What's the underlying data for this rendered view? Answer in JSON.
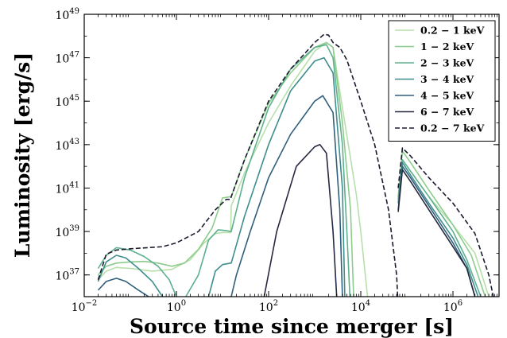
{
  "chart_data": {
    "type": "line",
    "title": "",
    "xlabel": "Source time since merger [s]",
    "ylabel": "Luminosity [erg/s]",
    "x_scale": "log",
    "y_scale": "log",
    "xlim": [
      0.01,
      10000000
    ],
    "ylim": [
      1e+36,
      1e+49
    ],
    "x_ticks": [
      {
        "value": 0.01,
        "base": "10",
        "exp": "−2"
      },
      {
        "value": 1,
        "base": "10",
        "exp": "0"
      },
      {
        "value": 100,
        "base": "10",
        "exp": "2"
      },
      {
        "value": 10000,
        "base": "10",
        "exp": "4"
      },
      {
        "value": 1000000,
        "base": "10",
        "exp": "6"
      }
    ],
    "y_ticks": [
      {
        "value": 1e+37,
        "base": "10",
        "exp": "37"
      },
      {
        "value": 1e+39,
        "base": "10",
        "exp": "39"
      },
      {
        "value": 1e+41,
        "base": "10",
        "exp": "41"
      },
      {
        "value": 1e+43,
        "base": "10",
        "exp": "43"
      },
      {
        "value": 1e+45,
        "base": "10",
        "exp": "45"
      },
      {
        "value": 1e+47,
        "base": "10",
        "exp": "47"
      },
      {
        "value": 1e+49,
        "base": "10",
        "exp": "49"
      }
    ],
    "grid": false,
    "legend_position": "top-right",
    "series": [
      {
        "name": "0.2 − 1 keV",
        "color": "#b7dfab",
        "dash": "none",
        "points": [
          [
            0.02,
            6e+36
          ],
          [
            0.03,
            1.5e+37
          ],
          [
            0.05,
            2.2e+37
          ],
          [
            0.1,
            2e+37
          ],
          [
            0.3,
            1.5e+37
          ],
          [
            0.8,
            1.8e+37
          ],
          [
            2,
            5e+37
          ],
          [
            4,
            3e+38
          ],
          [
            7,
            8e+38
          ],
          [
            10,
            9e+38
          ],
          [
            15,
            9e+38
          ],
          [
            15.5,
            1.5e+40
          ],
          [
            30,
            5e+41
          ],
          [
            100,
            1e+44
          ],
          [
            300,
            5e+45
          ],
          [
            1000,
            2e+47
          ],
          [
            1800,
            5e+47
          ],
          [
            2500,
            3e+47
          ],
          [
            4000,
            5e+44
          ],
          [
            8000,
            5e+40
          ],
          [
            10000,
            1e+39
          ],
          [
            14000,
            1e+36
          ]
        ]
      },
      {
        "name": "0.2 − 1 keV",
        "color": "#b7dfab",
        "dash": "none",
        "points": [
          [
            65000,
            2e+40
          ],
          [
            80000,
            2e+42
          ],
          [
            120000,
            6e+41
          ],
          [
            300000,
            4e+40
          ],
          [
            1000000,
            2e+39
          ],
          [
            3000000,
            1e+38
          ],
          [
            6000000,
            1e+36
          ]
        ]
      },
      {
        "name": "1 − 2 keV",
        "color": "#8dcc8c",
        "dash": "none",
        "points": [
          [
            0.02,
            1e+37
          ],
          [
            0.03,
            2.5e+37
          ],
          [
            0.05,
            3.5e+37
          ],
          [
            0.1,
            4e+37
          ],
          [
            0.2,
            4.2e+37
          ],
          [
            0.4,
            3.5e+37
          ],
          [
            0.8,
            2.5e+37
          ],
          [
            1.5,
            3.5e+37
          ],
          [
            3,
            1.5e+38
          ],
          [
            6,
            1.5e+39
          ],
          [
            10,
            3.5e+40
          ],
          [
            15,
            4e+40
          ],
          [
            15.5,
            4e+40
          ],
          [
            30,
            2e+42
          ],
          [
            100,
            8e+44
          ],
          [
            300,
            2e+46
          ],
          [
            1000,
            3e+47
          ],
          [
            1800,
            5e+47
          ],
          [
            2500,
            3e+47
          ],
          [
            4000,
            1e+44
          ],
          [
            6000,
            1e+40
          ],
          [
            7000,
            1e+36
          ]
        ]
      },
      {
        "name": "1 − 2 keV",
        "color": "#8dcc8c",
        "dash": "none",
        "points": [
          [
            65000,
            4e+40
          ],
          [
            80000,
            5e+42
          ],
          [
            120000,
            1.5e+42
          ],
          [
            300000,
            8e+40
          ],
          [
            1000000,
            2e+39
          ],
          [
            2500000,
            8e+37
          ],
          [
            5000000,
            1e+36
          ]
        ]
      },
      {
        "name": "2 − 3 keV",
        "color": "#5db08f",
        "dash": "none",
        "points": [
          [
            0.02,
            2e+37
          ],
          [
            0.03,
            8e+37
          ],
          [
            0.05,
            1.8e+38
          ],
          [
            0.1,
            1.4e+38
          ],
          [
            0.2,
            7e+37
          ],
          [
            0.4,
            2.5e+37
          ],
          [
            0.7,
            6e+36
          ],
          [
            1,
            1e+36
          ]
        ]
      },
      {
        "name": "2 − 3 keV",
        "color": "#5db08f",
        "dash": "none",
        "points": [
          [
            1.6,
            1e+36
          ],
          [
            3,
            1e+37
          ],
          [
            5,
            4e+38
          ],
          [
            8,
            1.2e+39
          ],
          [
            12,
            1.1e+39
          ],
          [
            15,
            1e+39
          ],
          [
            15.5,
            1e+39
          ],
          [
            30,
            3e+41
          ],
          [
            100,
            5e+44
          ],
          [
            300,
            3e+46
          ],
          [
            1000,
            3e+47
          ],
          [
            1800,
            4e+47
          ],
          [
            2500,
            1e+47
          ],
          [
            4000,
            1e+43
          ],
          [
            5000,
            1e+39
          ],
          [
            5800,
            1e+36
          ]
        ]
      },
      {
        "name": "2 − 3 keV",
        "color": "#5db08f",
        "dash": "none",
        "points": [
          [
            65000,
            3e+40
          ],
          [
            80000,
            2e+42
          ],
          [
            120000,
            6e+41
          ],
          [
            300000,
            4e+40
          ],
          [
            1000000,
            1e+39
          ],
          [
            2000000,
            5e+37
          ],
          [
            4000000,
            1e+36
          ]
        ]
      },
      {
        "name": "3 − 4 keV",
        "color": "#3f8d8c",
        "dash": "none",
        "points": [
          [
            0.02,
            5e+36
          ],
          [
            0.03,
            4e+37
          ],
          [
            0.05,
            8e+37
          ],
          [
            0.08,
            6e+37
          ],
          [
            0.15,
            2e+37
          ],
          [
            0.3,
            5e+36
          ],
          [
            0.5,
            1e+36
          ]
        ]
      },
      {
        "name": "3 − 4 keV",
        "color": "#3f8d8c",
        "dash": "none",
        "points": [
          [
            5,
            1e+36
          ],
          [
            7,
            1.5e+37
          ],
          [
            10,
            3e+37
          ],
          [
            15,
            3.5e+37
          ],
          [
            15.5,
            3.5e+37
          ],
          [
            30,
            5e+39
          ],
          [
            100,
            1e+43
          ],
          [
            300,
            3e+45
          ],
          [
            1000,
            7e+46
          ],
          [
            1600,
            1e+47
          ],
          [
            2500,
            2e+46
          ],
          [
            4000,
            1e+41
          ],
          [
            4500,
            1e+36
          ]
        ]
      },
      {
        "name": "3 − 4 keV",
        "color": "#3f8d8c",
        "dash": "none",
        "points": [
          [
            65000,
            2e+40
          ],
          [
            80000,
            1.5e+42
          ],
          [
            120000,
            4e+41
          ],
          [
            300000,
            2e+40
          ],
          [
            1000000,
            5e+38
          ],
          [
            2000000,
            3e+37
          ],
          [
            3500000,
            1e+36
          ]
        ]
      },
      {
        "name": "4 − 5 keV",
        "color": "#2f5f7c",
        "dash": "none",
        "points": [
          [
            0.02,
            2e+36
          ],
          [
            0.03,
            5e+36
          ],
          [
            0.05,
            7e+36
          ],
          [
            0.08,
            5e+36
          ],
          [
            0.15,
            2e+36
          ],
          [
            0.25,
            1e+36
          ]
        ]
      },
      {
        "name": "4 − 5 keV",
        "color": "#2f5f7c",
        "dash": "none",
        "points": [
          [
            15.5,
            1e+36
          ],
          [
            20,
            1e+37
          ],
          [
            40,
            1e+39
          ],
          [
            100,
            3e+41
          ],
          [
            300,
            3e+43
          ],
          [
            1000,
            1e+45
          ],
          [
            1500,
            1.8e+45
          ],
          [
            2500,
            3e+44
          ],
          [
            3500,
            1e+40
          ],
          [
            4000,
            1e+36
          ]
        ]
      },
      {
        "name": "4 − 5 keV",
        "color": "#2f5f7c",
        "dash": "none",
        "points": [
          [
            65000,
            1e+40
          ],
          [
            80000,
            1e+42
          ],
          [
            120000,
            3e+41
          ],
          [
            300000,
            1.5e+40
          ],
          [
            1000000,
            3e+38
          ],
          [
            2000000,
            2e+37
          ],
          [
            3000000,
            1e+36
          ]
        ]
      },
      {
        "name": "6 − 7 keV",
        "color": "#262840",
        "dash": "none",
        "points": [
          [
            80,
            1e+36
          ],
          [
            150,
            1e+39
          ],
          [
            400,
            1e+42
          ],
          [
            1000,
            8e+42
          ],
          [
            1300,
            1e+43
          ],
          [
            1800,
            4e+42
          ],
          [
            2500,
            1e+39
          ],
          [
            3000,
            1e+36
          ]
        ]
      },
      {
        "name": "6 − 7 keV",
        "color": "#262840",
        "dash": "none",
        "points": [
          [
            65000,
            8e+39
          ],
          [
            80000,
            7e+41
          ],
          [
            120000,
            2e+41
          ],
          [
            300000,
            1e+40
          ],
          [
            1000000,
            2e+38
          ],
          [
            2000000,
            2e+37
          ],
          [
            3000000,
            1e+36
          ]
        ]
      },
      {
        "name": "0.2 − 7 keV",
        "color": "#1a1a2e",
        "dash": "6 3",
        "points": [
          [
            0.02,
            6e+36
          ],
          [
            0.03,
            9e+37
          ],
          [
            0.05,
            1.4e+38
          ],
          [
            0.1,
            1.6e+38
          ],
          [
            0.5,
            2e+38
          ],
          [
            1,
            3e+38
          ],
          [
            3,
            1e+39
          ],
          [
            7,
            1e+40
          ],
          [
            12,
            3e+40
          ],
          [
            15,
            3e+40
          ],
          [
            15.5,
            4e+40
          ],
          [
            30,
            2e+42
          ],
          [
            100,
            1e+45
          ],
          [
            300,
            3e+46
          ],
          [
            1000,
            5e+47
          ],
          [
            1600,
            1.2e+48
          ],
          [
            2000,
            1.1e+48
          ],
          [
            2500,
            5e+47
          ],
          [
            3500,
            3e+47
          ],
          [
            5000,
            8e+46
          ],
          [
            10000,
            1e+45
          ],
          [
            20000,
            1e+43
          ],
          [
            40000,
            1e+40
          ],
          [
            60000,
            1e+37
          ],
          [
            63000,
            1e+36
          ]
        ]
      },
      {
        "name": "0.2 − 7 keV",
        "color": "#1a1a2e",
        "dash": "6 3",
        "points": [
          [
            65000,
            1e+41
          ],
          [
            80000,
            7e+42
          ],
          [
            120000,
            3e+42
          ],
          [
            300000,
            3e+41
          ],
          [
            1000000,
            2e+40
          ],
          [
            3000000,
            8e+38
          ],
          [
            6000000,
            1e+37
          ],
          [
            7500000,
            1e+36
          ]
        ]
      }
    ],
    "legend": [
      {
        "label": "0.2 − 1 keV",
        "color": "#b7dfab",
        "dash": "none"
      },
      {
        "label": "1 − 2 keV",
        "color": "#8dcc8c",
        "dash": "none"
      },
      {
        "label": "2 − 3 keV",
        "color": "#5db08f",
        "dash": "none"
      },
      {
        "label": "3 − 4 keV",
        "color": "#3f8d8c",
        "dash": "none"
      },
      {
        "label": "4 − 5 keV",
        "color": "#2f5f7c",
        "dash": "none"
      },
      {
        "label": "6 − 7 keV",
        "color": "#262840",
        "dash": "none"
      },
      {
        "label": "0.2 − 7 keV",
        "color": "#1a1a2e",
        "dash": "6 3"
      }
    ]
  }
}
